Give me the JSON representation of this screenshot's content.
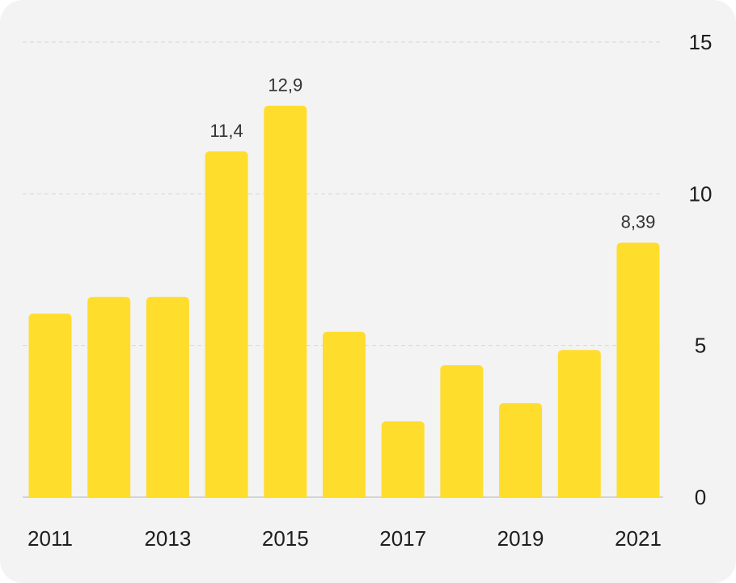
{
  "chart_data": {
    "type": "bar",
    "categories": [
      "2011",
      "2012",
      "2013",
      "2014",
      "2015",
      "2016",
      "2017",
      "2018",
      "2019",
      "2020",
      "2021"
    ],
    "series": [
      {
        "values": [
          6.05,
          6.6,
          6.6,
          11.4,
          12.9,
          5.45,
          2.5,
          4.35,
          3.1,
          4.85,
          8.39
        ]
      }
    ],
    "x_tick_labels": [
      "2011",
      "2013",
      "2015",
      "2017",
      "2019",
      "2021"
    ],
    "y_ticks": [
      0,
      5,
      10,
      15
    ],
    "y_tick_labels": [
      "0",
      "5",
      "10",
      "15"
    ],
    "data_labels": [
      {
        "category": "2014",
        "text": "11,4"
      },
      {
        "category": "2015",
        "text": "12,9"
      },
      {
        "category": "2021",
        "text": "8,39"
      }
    ],
    "ylim": [
      0,
      15
    ],
    "y_axis_position": "right",
    "grid": true,
    "bar_color": "#FFDD2D",
    "title": "",
    "xlabel": "",
    "ylabel": ""
  }
}
